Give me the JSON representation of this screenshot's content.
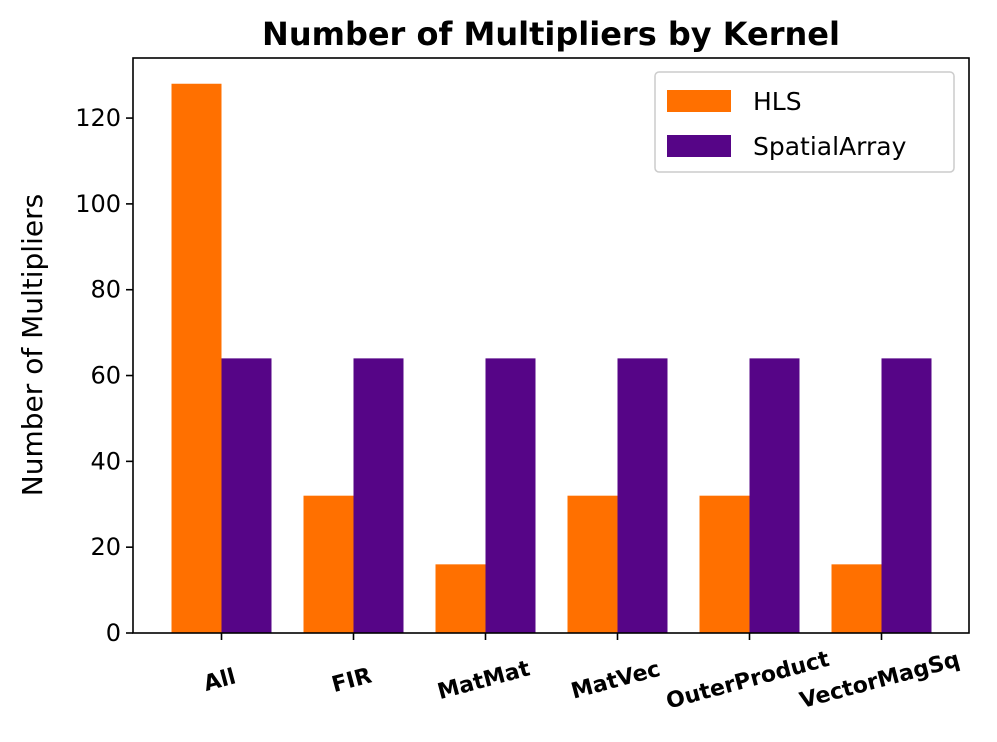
{
  "chart_data": {
    "type": "bar",
    "title": "Number of Multipliers by Kernel",
    "xlabel": "",
    "ylabel": "Number of Multipliers",
    "categories": [
      "All",
      "FIR",
      "MatMat",
      "MatVec",
      "OuterProduct",
      "VectorMagSq"
    ],
    "series": [
      {
        "name": "HLS",
        "values": [
          128,
          32,
          16,
          32,
          32,
          16
        ],
        "color": "#ff7000"
      },
      {
        "name": "SpatialArray",
        "values": [
          64,
          64,
          64,
          64,
          64,
          64
        ],
        "color": "#560587"
      }
    ],
    "ylim": [
      0,
      134
    ],
    "yticks": [
      0,
      20,
      40,
      60,
      80,
      100,
      120
    ],
    "grid": false,
    "legend": "top-right"
  }
}
